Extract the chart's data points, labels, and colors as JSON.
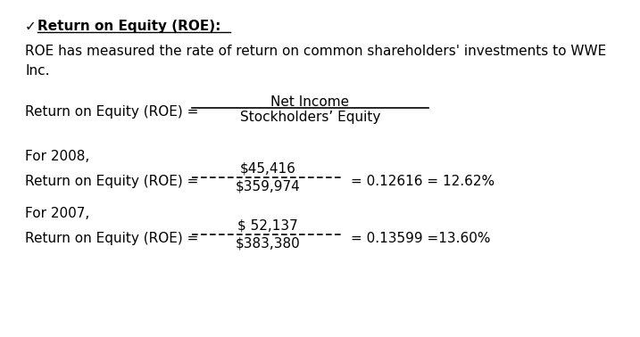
{
  "bg_color": "#ffffff",
  "title_check": "✓",
  "title_text": "Return on Equity (ROE):",
  "description_line1": "ROE has measured the rate of return on common shareholders' investments to WWE",
  "description_line2": "Inc.",
  "formula_label": "Return on Equity (ROE) =",
  "formula_numerator": "Net Income",
  "formula_denominator": "Stockholders’ Equity",
  "year2008_label": "For 2008,",
  "year2008_numerator": "$45,416",
  "year2008_denominator": "$359,974",
  "year2008_result": "= 0.12616 = 12.62%",
  "year2007_label": "For 2007,",
  "year2007_numerator": "$ 52,137",
  "year2007_denominator": "$383,380",
  "year2007_result": "= 0.13599 =13.60%"
}
